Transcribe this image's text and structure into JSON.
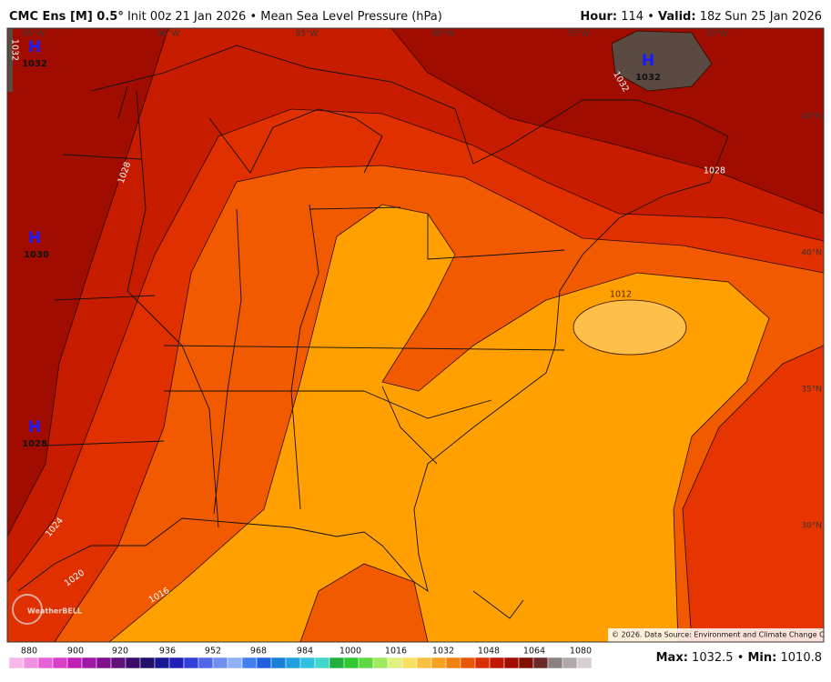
{
  "header": {
    "model": "CMC Ens [M] 0.5°",
    "title": "Init 00z 21 Jan 2026 • Mean Sea Level Pressure (hPa)",
    "hour_label": "Hour:",
    "hour": "114",
    "separator": "•",
    "valid_label": "Valid:",
    "valid": "18z Sun 25 Jan 2026"
  },
  "map": {
    "longitudes": [
      "95°W",
      "90°W",
      "85°W",
      "80°W",
      "75°W",
      "70°W"
    ],
    "latitudes": [
      "45°N",
      "40°N",
      "35°N",
      "30°N"
    ],
    "contour_labels": [
      "1032",
      "1028",
      "1028",
      "1024",
      "1020",
      "1016",
      "1012",
      "1032"
    ],
    "highs": [
      {
        "symbol": "H",
        "value": "1032"
      },
      {
        "symbol": "H",
        "value": "1030"
      },
      {
        "symbol": "H",
        "value": "1028"
      },
      {
        "symbol": "H",
        "value": "1032"
      }
    ],
    "logo": "WeatherBELL",
    "copyright": "© 2026. Data Source: Environment and Climate Change Canada."
  },
  "colorbar": {
    "ticks": [
      "880",
      "900",
      "920",
      "936",
      "952",
      "968",
      "984",
      "1000",
      "1016",
      "1032",
      "1048",
      "1064",
      "1080"
    ]
  },
  "footer": {
    "max_label": "Max:",
    "max": "1032.5",
    "separator": "•",
    "min_label": "Min:",
    "min": "1010.8"
  }
}
